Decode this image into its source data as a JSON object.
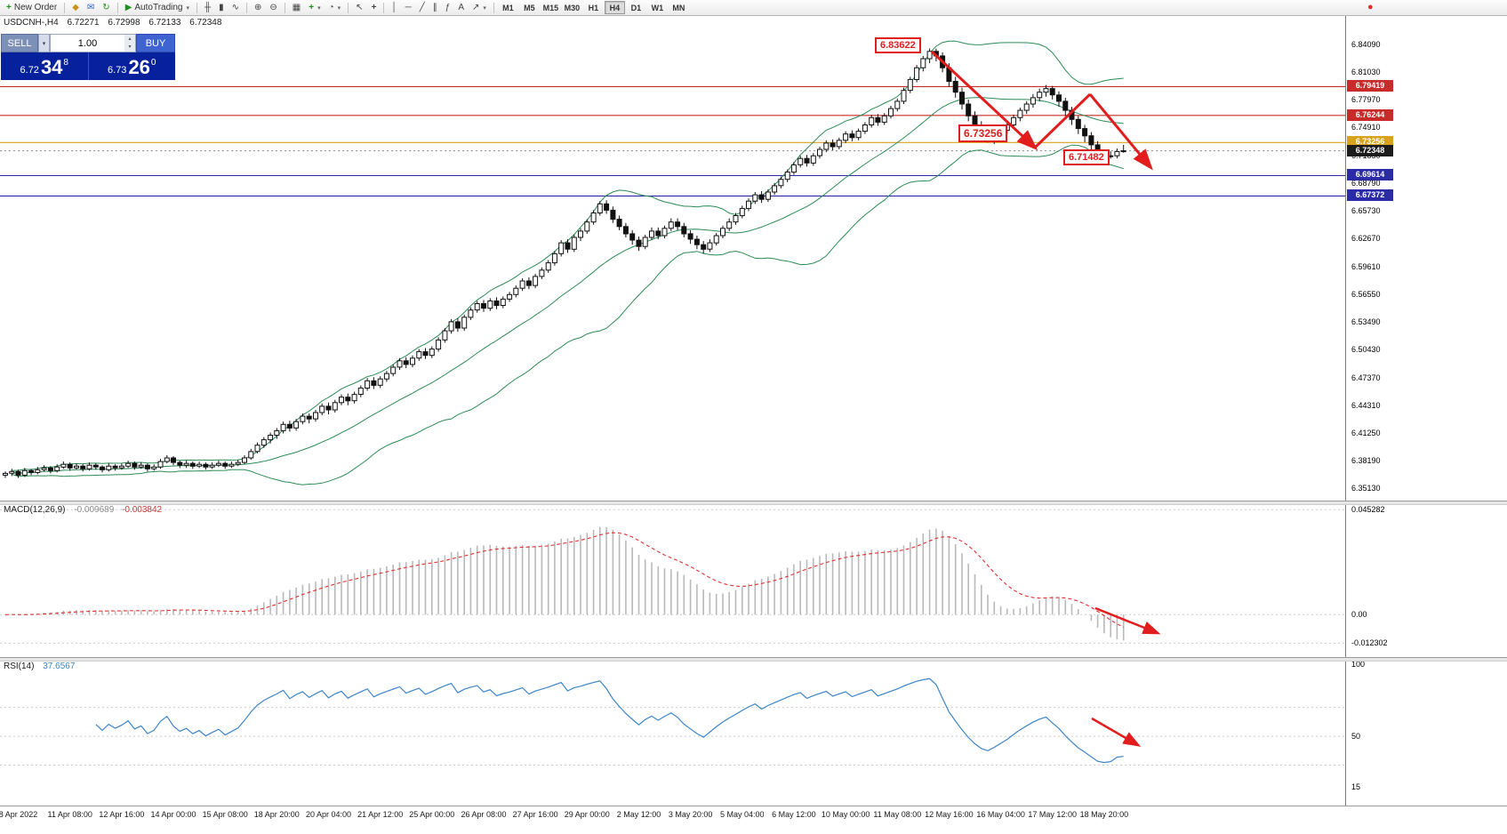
{
  "toolbar": {
    "new_order_label": "New Order",
    "autotrading_label": "AutoTrading",
    "timeframe_labels": [
      "M1",
      "M5",
      "M15",
      "M30",
      "H1",
      "H4",
      "D1",
      "W1",
      "MN"
    ],
    "active_timeframe": "H4"
  },
  "icons": {
    "new-order": "+",
    "symbols": "◆",
    "mail": "✉",
    "refresh": "↻",
    "play": "▶",
    "chevron-down": "▾",
    "ohlc-bars": "╫",
    "candles": "▮",
    "line-chart": "∿",
    "zoom-in": "⊕",
    "zoom-out": "⊖",
    "tile": "▦",
    "new-chart": "+",
    "clock": "◔",
    "cursor": "↖",
    "crosshair": "+",
    "vline": "│",
    "hline": "─",
    "trendline": "╱",
    "channel": "∥",
    "fibonacci": "ƒ",
    "text-tool": "A",
    "arrow-tool": "↗",
    "spin-up": "▴",
    "spin-down": "▾",
    "record": "●"
  },
  "chart_header": {
    "symbol": "USDCNH-,H4",
    "open": "6.72271",
    "high": "6.72998",
    "low": "6.72133",
    "close": "6.72348"
  },
  "one_click": {
    "sell_label": "SELL",
    "buy_label": "BUY",
    "volume": "1.00",
    "sell_price_small": "6.72",
    "sell_price_big": "34",
    "sell_price_sup": "8",
    "buy_price_small": "6.73",
    "buy_price_big": "26",
    "buy_price_sup": "0"
  },
  "chart_data": {
    "type": "candlestick",
    "symbol": "USDCNH",
    "timeframe": "H4",
    "main": {
      "ylim": [
        6.338,
        6.872
      ],
      "y_axis_labels": [
        "6.84090",
        "6.81030",
        "6.77970",
        "6.74910",
        "6.71850",
        "6.68790",
        "6.65730",
        "6.62670",
        "6.59610",
        "6.56550",
        "6.53490",
        "6.50430",
        "6.47370",
        "6.44310",
        "6.41250",
        "6.38190",
        "6.35130"
      ],
      "x_labels": [
        "8 Apr 2022",
        "11 Apr 08:00",
        "12 Apr 16:00",
        "14 Apr 00:00",
        "15 Apr 08:00",
        "18 Apr 20:00",
        "20 Apr 04:00",
        "21 Apr 12:00",
        "25 Apr 00:00",
        "26 Apr 08:00",
        "27 Apr 16:00",
        "29 Apr 00:00",
        "2 May 12:00",
        "3 May 20:00",
        "5 May 04:00",
        "6 May 12:00",
        "10 May 00:00",
        "11 May 08:00",
        "12 May 16:00",
        "16 May 04:00",
        "17 May 12:00",
        "18 May 20:00"
      ],
      "bollinger": {
        "period": 20,
        "deviation": 2,
        "color": "#2e8b57"
      },
      "hlines": [
        {
          "value": 6.79419,
          "color": "#c92a2a",
          "style": "solid"
        },
        {
          "value": 6.76244,
          "color": "#c92a2a",
          "style": "solid"
        },
        {
          "value": 6.73256,
          "color": "#d9a21b",
          "style": "solid"
        },
        {
          "value": 6.72348,
          "color": "#999999",
          "style": "dotted"
        },
        {
          "value": 6.69614,
          "color": "#2b2ba8",
          "style": "solid"
        },
        {
          "value": 6.67372,
          "color": "#2b2ba8",
          "style": "solid"
        }
      ],
      "price_tags": [
        {
          "label": "6.79419",
          "value": 6.79419,
          "bg": "#c92a2a",
          "fg": "#ffffff"
        },
        {
          "label": "6.76244",
          "value": 6.76244,
          "bg": "#c92a2a",
          "fg": "#ffffff"
        },
        {
          "label": "6.73256",
          "value": 6.73256,
          "bg": "#d9a21b",
          "fg": "#ffffff"
        },
        {
          "label": "6.72348",
          "value": 6.72348,
          "bg": "#1c1c1c",
          "fg": "#ffffff"
        },
        {
          "label": "6.69614",
          "value": 6.69614,
          "bg": "#2b2ba8",
          "fg": "#ffffff"
        },
        {
          "label": "6.67372",
          "value": 6.67372,
          "bg": "#2b2ba8",
          "fg": "#ffffff"
        }
      ],
      "annotations": [
        {
          "text": "6.83622"
        },
        {
          "text": "6.73256"
        },
        {
          "text": "6.71482"
        }
      ],
      "candles": [
        [
          6.366,
          6.37,
          6.363,
          6.368
        ],
        [
          6.368,
          6.373,
          6.365,
          6.37
        ],
        [
          6.37,
          6.372,
          6.363,
          6.366
        ],
        [
          6.366,
          6.374,
          6.364,
          6.371
        ],
        [
          6.371,
          6.373,
          6.366,
          6.369
        ],
        [
          6.369,
          6.375,
          6.367,
          6.372
        ],
        [
          6.372,
          6.377,
          6.37,
          6.374
        ],
        [
          6.374,
          6.376,
          6.368,
          6.371
        ],
        [
          6.371,
          6.378,
          6.369,
          6.375
        ],
        [
          6.375,
          6.381,
          6.373,
          6.378
        ],
        [
          6.378,
          6.38,
          6.371,
          6.374
        ],
        [
          6.374,
          6.379,
          6.372,
          6.376
        ],
        [
          6.376,
          6.378,
          6.37,
          6.373
        ],
        [
          6.373,
          6.38,
          6.371,
          6.377
        ],
        [
          6.377,
          6.379,
          6.372,
          6.375
        ],
        [
          6.375,
          6.377,
          6.369,
          6.372
        ],
        [
          6.372,
          6.379,
          6.37,
          6.376
        ],
        [
          6.376,
          6.378,
          6.371,
          6.374
        ],
        [
          6.374,
          6.379,
          6.372,
          6.376
        ],
        [
          6.376,
          6.382,
          6.374,
          6.379
        ],
        [
          6.379,
          6.381,
          6.372,
          6.375
        ],
        [
          6.375,
          6.38,
          6.373,
          6.377
        ],
        [
          6.377,
          6.379,
          6.37,
          6.373
        ],
        [
          6.373,
          6.378,
          6.371,
          6.375
        ],
        [
          6.375,
          6.384,
          6.373,
          6.381
        ],
        [
          6.381,
          6.388,
          6.379,
          6.385
        ],
        [
          6.385,
          6.387,
          6.377,
          6.38
        ],
        [
          6.38,
          6.382,
          6.374,
          6.377
        ],
        [
          6.377,
          6.382,
          6.374,
          6.379
        ],
        [
          6.379,
          6.381,
          6.373,
          6.376
        ],
        [
          6.376,
          6.381,
          6.374,
          6.378
        ],
        [
          6.378,
          6.38,
          6.372,
          6.375
        ],
        [
          6.375,
          6.38,
          6.373,
          6.377
        ],
        [
          6.377,
          6.382,
          6.375,
          6.379
        ],
        [
          6.379,
          6.381,
          6.373,
          6.376
        ],
        [
          6.376,
          6.381,
          6.374,
          6.378
        ],
        [
          6.378,
          6.383,
          6.376,
          6.38
        ],
        [
          6.38,
          6.388,
          6.378,
          6.385
        ],
        [
          6.385,
          6.395,
          6.383,
          6.392
        ],
        [
          6.392,
          6.402,
          6.39,
          6.399
        ],
        [
          6.399,
          6.408,
          6.396,
          6.405
        ],
        [
          6.405,
          6.413,
          6.401,
          6.41
        ],
        [
          6.41,
          6.418,
          6.406,
          6.415
        ],
        [
          6.415,
          6.425,
          6.412,
          6.422
        ],
        [
          6.422,
          6.426,
          6.414,
          6.418
        ],
        [
          6.418,
          6.428,
          6.415,
          6.425
        ],
        [
          6.425,
          6.434,
          6.422,
          6.431
        ],
        [
          6.431,
          6.434,
          6.423,
          6.428
        ],
        [
          6.428,
          6.438,
          6.425,
          6.435
        ],
        [
          6.435,
          6.445,
          6.432,
          6.442
        ],
        [
          6.442,
          6.446,
          6.433,
          6.438
        ],
        [
          6.438,
          6.449,
          6.435,
          6.446
        ],
        [
          6.446,
          6.455,
          6.443,
          6.452
        ],
        [
          6.452,
          6.456,
          6.443,
          6.448
        ],
        [
          6.448,
          6.458,
          6.445,
          6.455
        ],
        [
          6.455,
          6.465,
          6.452,
          6.462
        ],
        [
          6.462,
          6.473,
          6.459,
          6.47
        ],
        [
          6.47,
          6.474,
          6.461,
          6.465
        ],
        [
          6.465,
          6.475,
          6.462,
          6.472
        ],
        [
          6.472,
          6.481,
          6.469,
          6.478
        ],
        [
          6.478,
          6.488,
          6.475,
          6.485
        ],
        [
          6.485,
          6.495,
          6.482,
          6.492
        ],
        [
          6.492,
          6.496,
          6.484,
          6.488
        ],
        [
          6.488,
          6.498,
          6.485,
          6.495
        ],
        [
          6.495,
          6.505,
          6.492,
          6.502
        ],
        [
          6.502,
          6.506,
          6.494,
          6.498
        ],
        [
          6.498,
          6.508,
          6.495,
          6.505
        ],
        [
          6.505,
          6.518,
          6.502,
          6.515
        ],
        [
          6.515,
          6.528,
          6.512,
          6.525
        ],
        [
          6.525,
          6.538,
          6.522,
          6.535
        ],
        [
          6.535,
          6.539,
          6.524,
          6.528
        ],
        [
          6.528,
          6.543,
          6.525,
          6.54
        ],
        [
          6.54,
          6.551,
          6.537,
          6.548
        ],
        [
          6.548,
          6.558,
          6.545,
          6.555
        ],
        [
          6.555,
          6.559,
          6.546,
          6.55
        ],
        [
          6.55,
          6.561,
          6.547,
          6.558
        ],
        [
          6.558,
          6.562,
          6.549,
          6.553
        ],
        [
          6.553,
          6.563,
          6.55,
          6.56
        ],
        [
          6.56,
          6.568,
          6.557,
          6.565
        ],
        [
          6.565,
          6.575,
          6.562,
          6.572
        ],
        [
          6.572,
          6.583,
          6.569,
          6.58
        ],
        [
          6.58,
          6.584,
          6.571,
          6.575
        ],
        [
          6.575,
          6.588,
          6.572,
          6.585
        ],
        [
          6.585,
          6.595,
          6.582,
          6.592
        ],
        [
          6.592,
          6.603,
          6.589,
          6.6
        ],
        [
          6.6,
          6.613,
          6.597,
          6.61
        ],
        [
          6.61,
          6.625,
          6.607,
          6.622
        ],
        [
          6.622,
          6.626,
          6.611,
          6.615
        ],
        [
          6.615,
          6.631,
          6.612,
          6.628
        ],
        [
          6.628,
          6.638,
          6.624,
          6.635
        ],
        [
          6.635,
          6.648,
          6.632,
          6.645
        ],
        [
          6.645,
          6.658,
          6.642,
          6.655
        ],
        [
          6.655,
          6.668,
          6.652,
          6.665
        ],
        [
          6.665,
          6.669,
          6.654,
          6.658
        ],
        [
          6.658,
          6.662,
          6.644,
          6.648
        ],
        [
          6.648,
          6.652,
          6.636,
          6.64
        ],
        [
          6.64,
          6.644,
          6.628,
          6.632
        ],
        [
          6.632,
          6.636,
          6.62,
          6.625
        ],
        [
          6.625,
          6.629,
          6.613,
          6.618
        ],
        [
          6.618,
          6.631,
          6.615,
          6.628
        ],
        [
          6.628,
          6.639,
          6.625,
          6.635
        ],
        [
          6.635,
          6.639,
          6.626,
          6.63
        ],
        [
          6.63,
          6.641,
          6.627,
          6.638
        ],
        [
          6.638,
          6.649,
          6.635,
          6.645
        ],
        [
          6.645,
          6.649,
          6.636,
          6.64
        ],
        [
          6.64,
          6.644,
          6.628,
          6.632
        ],
        [
          6.632,
          6.636,
          6.621,
          6.626
        ],
        [
          6.626,
          6.63,
          6.615,
          6.62
        ],
        [
          6.62,
          6.624,
          6.61,
          6.615
        ],
        [
          6.615,
          6.626,
          6.612,
          6.622
        ],
        [
          6.622,
          6.633,
          6.619,
          6.63
        ],
        [
          6.63,
          6.641,
          6.627,
          6.638
        ],
        [
          6.638,
          6.649,
          6.635,
          6.645
        ],
        [
          6.645,
          6.655,
          6.642,
          6.652
        ],
        [
          6.652,
          6.663,
          6.649,
          6.66
        ],
        [
          6.66,
          6.671,
          6.657,
          6.668
        ],
        [
          6.668,
          6.678,
          6.665,
          6.675
        ],
        [
          6.675,
          6.679,
          6.666,
          6.67
        ],
        [
          6.67,
          6.681,
          6.667,
          6.678
        ],
        [
          6.678,
          6.688,
          6.675,
          6.685
        ],
        [
          6.685,
          6.695,
          6.682,
          6.692
        ],
        [
          6.692,
          6.703,
          6.689,
          6.7
        ],
        [
          6.7,
          6.711,
          6.697,
          6.708
        ],
        [
          6.708,
          6.718,
          6.705,
          6.715
        ],
        [
          6.715,
          6.719,
          6.706,
          6.71
        ],
        [
          6.71,
          6.721,
          6.707,
          6.718
        ],
        [
          6.718,
          6.728,
          6.715,
          6.725
        ],
        [
          6.725,
          6.735,
          6.722,
          6.732
        ],
        [
          6.732,
          6.736,
          6.724,
          6.728
        ],
        [
          6.728,
          6.738,
          6.725,
          6.735
        ],
        [
          6.735,
          6.745,
          6.732,
          6.742
        ],
        [
          6.742,
          6.746,
          6.734,
          6.738
        ],
        [
          6.738,
          6.748,
          6.735,
          6.745
        ],
        [
          6.745,
          6.755,
          6.742,
          6.752
        ],
        [
          6.752,
          6.763,
          6.749,
          6.76
        ],
        [
          6.76,
          6.764,
          6.751,
          6.755
        ],
        [
          6.755,
          6.765,
          6.752,
          6.762
        ],
        [
          6.762,
          6.773,
          6.759,
          6.77
        ],
        [
          6.77,
          6.781,
          6.767,
          6.778
        ],
        [
          6.778,
          6.793,
          6.775,
          6.79
        ],
        [
          6.79,
          6.805,
          6.787,
          6.802
        ],
        [
          6.802,
          6.818,
          6.799,
          6.815
        ],
        [
          6.815,
          6.828,
          6.811,
          6.825
        ],
        [
          6.825,
          6.8362,
          6.82,
          6.833
        ],
        [
          6.833,
          6.836,
          6.822,
          6.828
        ],
        [
          6.828,
          6.832,
          6.81,
          6.815
        ],
        [
          6.815,
          6.82,
          6.794,
          6.8
        ],
        [
          6.8,
          6.805,
          6.782,
          6.788
        ],
        [
          6.788,
          6.793,
          6.769,
          6.775
        ],
        [
          6.775,
          6.78,
          6.756,
          6.762
        ],
        [
          6.762,
          6.767,
          6.744,
          6.75
        ],
        [
          6.75,
          6.756,
          6.735,
          6.74
        ],
        [
          6.74,
          6.746,
          6.7326,
          6.735
        ],
        [
          6.735,
          6.744,
          6.731,
          6.74
        ],
        [
          6.74,
          6.75,
          6.737,
          6.746
        ],
        [
          6.746,
          6.756,
          6.742,
          6.752
        ],
        [
          6.752,
          6.763,
          6.748,
          6.76
        ],
        [
          6.76,
          6.771,
          6.756,
          6.768
        ],
        [
          6.768,
          6.778,
          6.764,
          6.775
        ],
        [
          6.775,
          6.786,
          6.771,
          6.782
        ],
        [
          6.782,
          6.792,
          6.778,
          6.788
        ],
        [
          6.788,
          6.796,
          6.783,
          6.792
        ],
        [
          6.792,
          6.795,
          6.78,
          6.785
        ],
        [
          6.785,
          6.789,
          6.772,
          6.778
        ],
        [
          6.778,
          6.782,
          6.762,
          6.768
        ],
        [
          6.768,
          6.772,
          6.752,
          6.758
        ],
        [
          6.758,
          6.762,
          6.742,
          6.748
        ],
        [
          6.748,
          6.752,
          6.733,
          6.74
        ],
        [
          6.74,
          6.744,
          6.724,
          6.73
        ],
        [
          6.73,
          6.734,
          6.714,
          6.72
        ],
        [
          6.72,
          6.724,
          6.7148,
          6.717
        ],
        [
          6.717,
          6.723,
          6.7148,
          6.718
        ],
        [
          6.718,
          6.726,
          6.715,
          6.72271
        ],
        [
          6.72271,
          6.72998,
          6.72133,
          6.72348
        ]
      ]
    },
    "macd": {
      "label": "MACD(12,26,9)",
      "value_main": "-0.009689",
      "value_signal": "-0.003842",
      "params": [
        12,
        26,
        9
      ],
      "axis_labels": [
        "0.045282",
        "0.00",
        "-0.012302"
      ]
    },
    "rsi": {
      "label": "RSI(14)",
      "value": "37.6567",
      "period": 14,
      "axis_labels": [
        "100",
        "50",
        "15"
      ],
      "levels": [
        70,
        50,
        30
      ]
    }
  }
}
